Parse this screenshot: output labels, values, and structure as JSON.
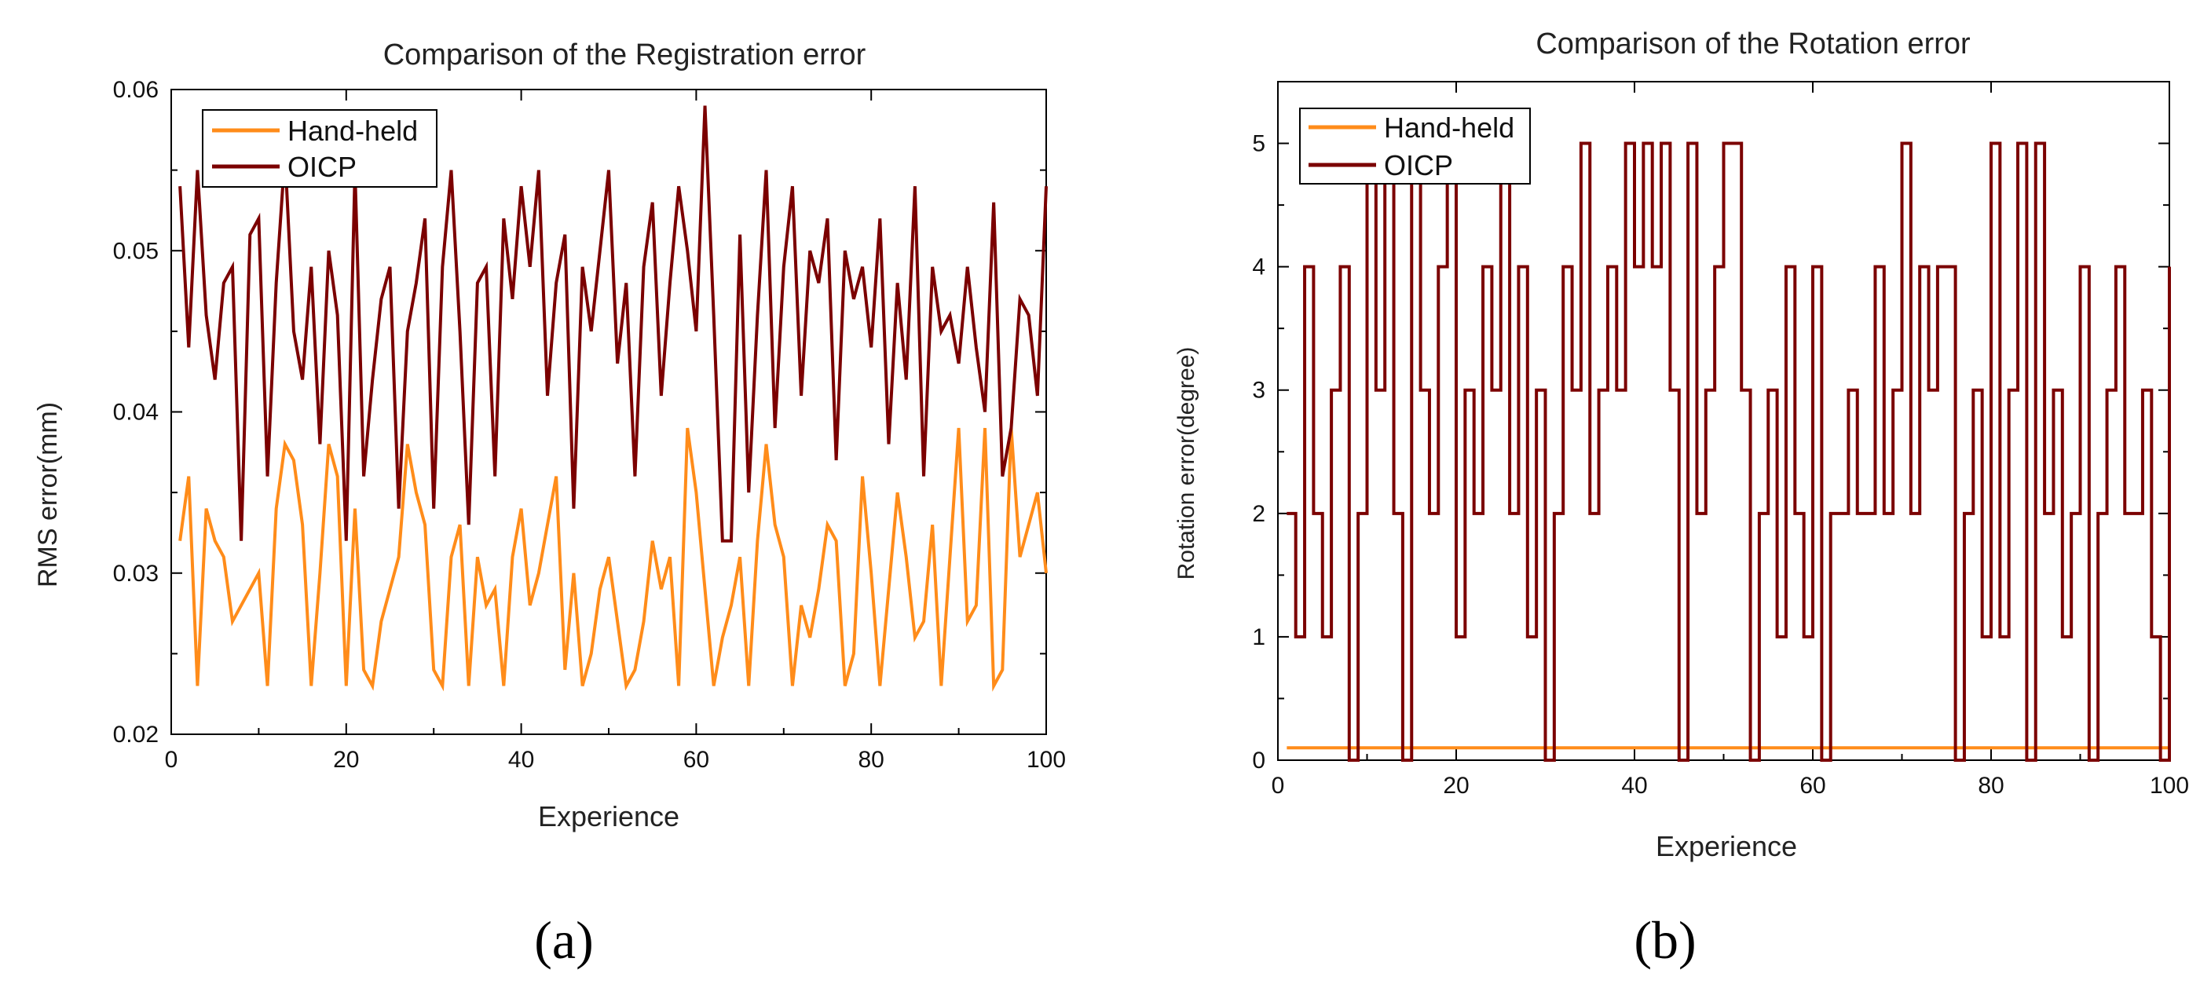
{
  "colors": {
    "hand_held": "#FF8C1A",
    "oicp": "#7B0000",
    "axis": "#000000"
  },
  "chart_data": [
    {
      "type": "line",
      "panel_label": "(a)",
      "title": "Comparison of the Registration error",
      "xlabel": "Experience",
      "ylabel": "RMS error(mm)",
      "xlim": [
        0,
        100
      ],
      "ylim": [
        0.02,
        0.06
      ],
      "xticks": [
        0,
        20,
        40,
        60,
        80,
        100
      ],
      "yticks": [
        0.02,
        0.03,
        0.04,
        0.05,
        0.06
      ],
      "ytick_labels": [
        "0.02",
        "0.03",
        "0.04",
        "0.05",
        "0.06"
      ],
      "legend_position": "top-left",
      "series": [
        {
          "name": "Hand-held",
          "color": "#FF8C1A",
          "step": false,
          "x": [
            1,
            2,
            3,
            4,
            5,
            6,
            7,
            8,
            9,
            10,
            11,
            12,
            13,
            14,
            15,
            16,
            17,
            18,
            19,
            20,
            21,
            22,
            23,
            24,
            25,
            26,
            27,
            28,
            29,
            30,
            31,
            32,
            33,
            34,
            35,
            36,
            37,
            38,
            39,
            40,
            41,
            42,
            43,
            44,
            45,
            46,
            47,
            48,
            49,
            50,
            51,
            52,
            53,
            54,
            55,
            56,
            57,
            58,
            59,
            60,
            61,
            62,
            63,
            64,
            65,
            66,
            67,
            68,
            69,
            70,
            71,
            72,
            73,
            74,
            75,
            76,
            77,
            78,
            79,
            80,
            81,
            82,
            83,
            84,
            85,
            86,
            87,
            88,
            89,
            90,
            91,
            92,
            93,
            94,
            95,
            96,
            97,
            98,
            99,
            100
          ],
          "values": [
            0.032,
            0.036,
            0.023,
            0.034,
            0.032,
            0.031,
            0.027,
            0.028,
            0.029,
            0.03,
            0.023,
            0.034,
            0.038,
            0.037,
            0.033,
            0.023,
            0.03,
            0.038,
            0.036,
            0.023,
            0.034,
            0.024,
            0.023,
            0.027,
            0.029,
            0.031,
            0.038,
            0.035,
            0.033,
            0.024,
            0.023,
            0.031,
            0.033,
            0.023,
            0.031,
            0.028,
            0.029,
            0.023,
            0.031,
            0.034,
            0.028,
            0.03,
            0.033,
            0.036,
            0.024,
            0.03,
            0.023,
            0.025,
            0.029,
            0.031,
            0.027,
            0.023,
            0.024,
            0.027,
            0.032,
            0.029,
            0.031,
            0.023,
            0.039,
            0.035,
            0.029,
            0.023,
            0.026,
            0.028,
            0.031,
            0.023,
            0.032,
            0.038,
            0.033,
            0.031,
            0.023,
            0.028,
            0.026,
            0.029,
            0.033,
            0.032,
            0.023,
            0.025,
            0.036,
            0.03,
            0.023,
            0.029,
            0.035,
            0.031,
            0.026,
            0.027,
            0.033,
            0.023,
            0.031,
            0.039,
            0.027,
            0.028,
            0.039,
            0.023,
            0.024,
            0.039,
            0.031,
            0.033,
            0.035,
            0.03
          ]
        },
        {
          "name": "OICP",
          "color": "#7B0000",
          "step": false,
          "x": [
            1,
            2,
            3,
            4,
            5,
            6,
            7,
            8,
            9,
            10,
            11,
            12,
            13,
            14,
            15,
            16,
            17,
            18,
            19,
            20,
            21,
            22,
            23,
            24,
            25,
            26,
            27,
            28,
            29,
            30,
            31,
            32,
            33,
            34,
            35,
            36,
            37,
            38,
            39,
            40,
            41,
            42,
            43,
            44,
            45,
            46,
            47,
            48,
            49,
            50,
            51,
            52,
            53,
            54,
            55,
            56,
            57,
            58,
            59,
            60,
            61,
            62,
            63,
            64,
            65,
            66,
            67,
            68,
            69,
            70,
            71,
            72,
            73,
            74,
            75,
            76,
            77,
            78,
            79,
            80,
            81,
            82,
            83,
            84,
            85,
            86,
            87,
            88,
            89,
            90,
            91,
            92,
            93,
            94,
            95,
            96,
            97,
            98,
            99,
            100
          ],
          "values": [
            0.054,
            0.044,
            0.055,
            0.046,
            0.042,
            0.048,
            0.049,
            0.032,
            0.051,
            0.052,
            0.036,
            0.048,
            0.056,
            0.045,
            0.042,
            0.049,
            0.038,
            0.05,
            0.046,
            0.032,
            0.055,
            0.036,
            0.042,
            0.047,
            0.049,
            0.034,
            0.045,
            0.048,
            0.052,
            0.034,
            0.049,
            0.055,
            0.045,
            0.033,
            0.048,
            0.049,
            0.036,
            0.052,
            0.047,
            0.054,
            0.049,
            0.055,
            0.041,
            0.048,
            0.051,
            0.034,
            0.049,
            0.045,
            0.05,
            0.055,
            0.043,
            0.048,
            0.036,
            0.049,
            0.053,
            0.041,
            0.048,
            0.054,
            0.05,
            0.045,
            0.059,
            0.046,
            0.032,
            0.032,
            0.051,
            0.035,
            0.046,
            0.055,
            0.039,
            0.049,
            0.054,
            0.041,
            0.05,
            0.048,
            0.052,
            0.037,
            0.05,
            0.047,
            0.049,
            0.044,
            0.052,
            0.038,
            0.048,
            0.042,
            0.054,
            0.036,
            0.049,
            0.045,
            0.046,
            0.043,
            0.049,
            0.044,
            0.04,
            0.053,
            0.036,
            0.039,
            0.047,
            0.046,
            0.041,
            0.054
          ]
        }
      ]
    },
    {
      "type": "line",
      "panel_label": "(b)",
      "title": "Comparison of the Rotation error",
      "xlabel": "Experience",
      "ylabel": "Rotation error(degree)",
      "xlim": [
        0,
        100
      ],
      "ylim": [
        0,
        5.5
      ],
      "xticks": [
        0,
        20,
        40,
        60,
        80,
        100
      ],
      "yticks": [
        0,
        1,
        2,
        3,
        4,
        5
      ],
      "ytick_labels": [
        "0",
        "1",
        "2",
        "3",
        "4",
        "5"
      ],
      "legend_position": "top-left",
      "series": [
        {
          "name": "Hand-held",
          "color": "#FF8C1A",
          "step": true,
          "x": [
            1,
            2,
            3,
            4,
            5,
            6,
            7,
            8,
            9,
            10,
            11,
            12,
            13,
            14,
            15,
            16,
            17,
            18,
            19,
            20,
            21,
            22,
            23,
            24,
            25,
            26,
            27,
            28,
            29,
            30,
            31,
            32,
            33,
            34,
            35,
            36,
            37,
            38,
            39,
            40,
            41,
            42,
            43,
            44,
            45,
            46,
            47,
            48,
            49,
            50,
            51,
            52,
            53,
            54,
            55,
            56,
            57,
            58,
            59,
            60,
            61,
            62,
            63,
            64,
            65,
            66,
            67,
            68,
            69,
            70,
            71,
            72,
            73,
            74,
            75,
            76,
            77,
            78,
            79,
            80,
            81,
            82,
            83,
            84,
            85,
            86,
            87,
            88,
            89,
            90,
            91,
            92,
            93,
            94,
            95,
            96,
            97,
            98,
            99,
            100
          ],
          "values": [
            0.1,
            0.1,
            0.1,
            0.1,
            0.1,
            0.1,
            0.1,
            0.1,
            0.1,
            0.1,
            0.1,
            0.1,
            0.1,
            0.1,
            0.1,
            0.1,
            0.1,
            0.1,
            0.1,
            0.1,
            0.1,
            0.1,
            0.1,
            0.1,
            0.1,
            0.1,
            0.1,
            0.1,
            0.1,
            0.1,
            0.1,
            0.1,
            0.1,
            0.1,
            0.1,
            0.1,
            0.1,
            0.1,
            0.1,
            0.1,
            0.1,
            0.1,
            0.1,
            0.1,
            0.1,
            0.1,
            0.1,
            0.1,
            0.1,
            0.1,
            0.1,
            0.1,
            0.1,
            0.1,
            0.1,
            0.1,
            0.1,
            0.1,
            0.1,
            0.1,
            0.1,
            0.1,
            0.1,
            0.1,
            0.1,
            0.1,
            0.1,
            0.1,
            0.1,
            0.1,
            0.1,
            0.1,
            0.1,
            0.1,
            0.1,
            0.1,
            0.1,
            0.1,
            0.1,
            0.1,
            0.1,
            0.1,
            0.1,
            0.1,
            0.1,
            0.1,
            0.1,
            0.1,
            0.1,
            0.1,
            0.1,
            0.1,
            0.1,
            0.1,
            0.1,
            0.1,
            0.1,
            0.1,
            0.1,
            0.1
          ]
        },
        {
          "name": "OICP",
          "color": "#7B0000",
          "step": true,
          "x": [
            1,
            2,
            3,
            4,
            5,
            6,
            7,
            8,
            9,
            10,
            11,
            12,
            13,
            14,
            15,
            16,
            17,
            18,
            19,
            20,
            21,
            22,
            23,
            24,
            25,
            26,
            27,
            28,
            29,
            30,
            31,
            32,
            33,
            34,
            35,
            36,
            37,
            38,
            39,
            40,
            41,
            42,
            43,
            44,
            45,
            46,
            47,
            48,
            49,
            50,
            51,
            52,
            53,
            54,
            55,
            56,
            57,
            58,
            59,
            60,
            61,
            62,
            63,
            64,
            65,
            66,
            67,
            68,
            69,
            70,
            71,
            72,
            73,
            74,
            75,
            76,
            77,
            78,
            79,
            80,
            81,
            82,
            83,
            84,
            85,
            86,
            87,
            88,
            89,
            90,
            91,
            92,
            93,
            94,
            95,
            96,
            97,
            98,
            99,
            100
          ],
          "values": [
            2,
            1,
            4,
            2,
            1,
            3,
            4,
            0,
            2,
            5,
            3,
            5,
            2,
            0,
            5,
            3,
            2,
            4,
            5,
            1,
            3,
            2,
            4,
            3,
            5,
            2,
            4,
            1,
            3,
            0,
            2,
            4,
            3,
            5,
            2,
            3,
            4,
            3,
            5,
            4,
            5,
            4,
            5,
            3,
            0,
            5,
            2,
            3,
            4,
            5,
            5,
            3,
            0,
            2,
            3,
            1,
            4,
            2,
            1,
            4,
            0,
            2,
            2,
            3,
            2,
            2,
            4,
            2,
            3,
            5,
            2,
            4,
            3,
            4,
            4,
            0,
            2,
            3,
            1,
            5,
            1,
            3,
            5,
            0,
            5,
            2,
            3,
            1,
            2,
            4,
            0,
            2,
            3,
            4,
            2,
            2,
            3,
            1,
            0,
            4
          ]
        }
      ]
    }
  ]
}
